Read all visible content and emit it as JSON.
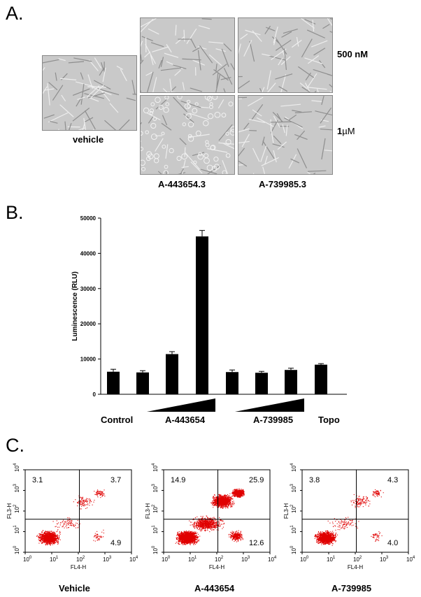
{
  "panelA": {
    "letter": "A.",
    "vehicle_label": "vehicle",
    "conc_500": "500 nM",
    "conc_1": "1",
    "conc_1_unit": "µM",
    "col1_label": "A-443654.3",
    "col2_label": "A-739985.3"
  },
  "panelB": {
    "letter": "B.",
    "group_labels": [
      "Control",
      "A-443654",
      "A-739985",
      "Topo"
    ]
  },
  "chart_data": {
    "type": "bar",
    "ylabel": "Luminescence (RLU)",
    "ylim": [
      0,
      50000
    ],
    "yticks": [
      "0",
      "10000",
      "20000",
      "30000",
      "40000",
      "50000"
    ],
    "values": [
      6400,
      6200,
      11400,
      44800,
      6300,
      6100,
      6900,
      8400
    ],
    "errors": [
      700,
      500,
      700,
      1700,
      600,
      400,
      500,
      300
    ],
    "groups": [
      "Control",
      "A-443654",
      "A-443654",
      "A-443654",
      "A-739985",
      "A-739985",
      "A-739985",
      "Topo"
    ]
  },
  "panelC": {
    "letter": "C.",
    "ylabel": "FL3-H",
    "xlabel": "FL4-H",
    "plots": [
      {
        "name": "Vehicle",
        "ul": "3.1",
        "ur": "3.7",
        "lr": "4.9"
      },
      {
        "name": "A-443654",
        "ul": "14.9",
        "ur": "25.9",
        "lr": "12.6"
      },
      {
        "name": "A-739985",
        "ul": "3.8",
        "ur": "4.3",
        "lr": "4.0"
      }
    ]
  }
}
